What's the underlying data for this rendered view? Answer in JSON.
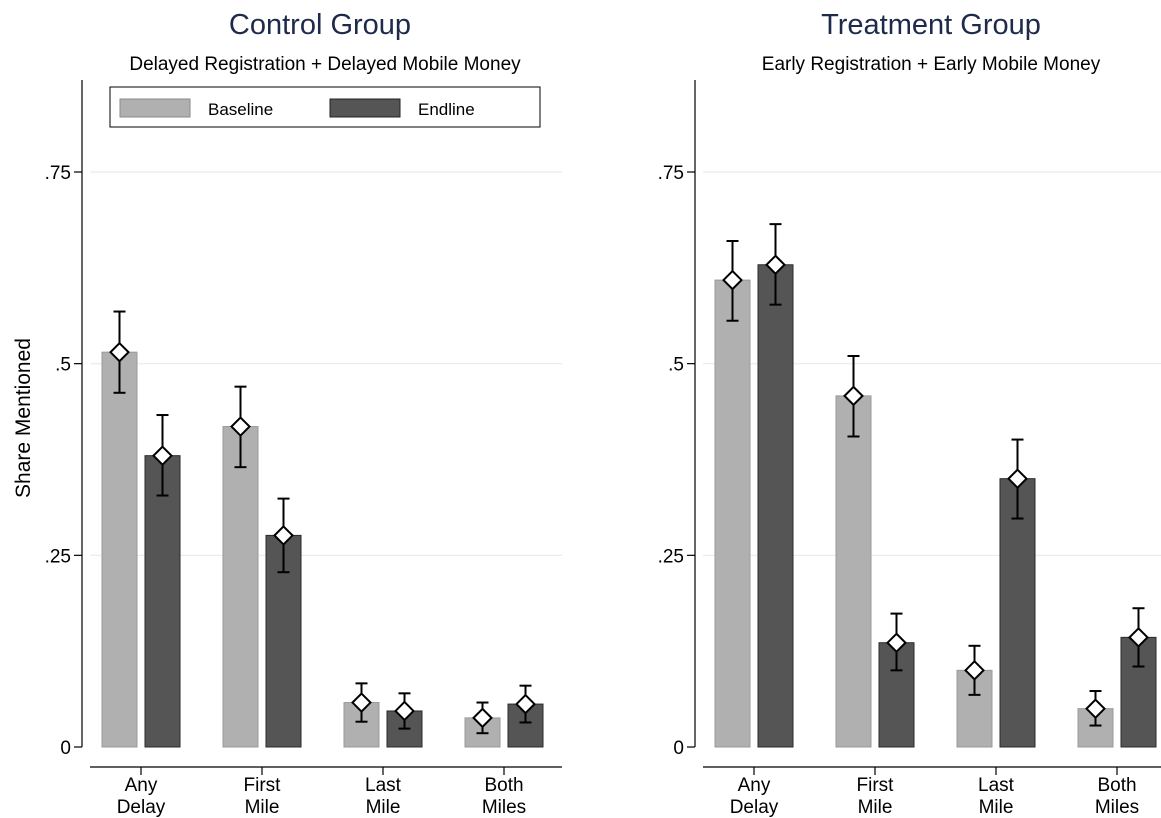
{
  "colors": {
    "baseline": "#b0b0b0",
    "endline": "#555555",
    "grid": "#eaeaea",
    "title": "#1e2a4a"
  },
  "ylabel": "Share Mentioned",
  "legend": {
    "baseline": "Baseline",
    "endline": "Endline"
  },
  "chart_data": [
    {
      "type": "bar",
      "title": "Control Group",
      "subtitle": "Delayed Registration + Delayed Mobile Money",
      "categories": [
        [
          "Any",
          "Delay"
        ],
        [
          "First",
          "Mile"
        ],
        [
          "Last",
          "Mile"
        ],
        [
          "Both",
          "Miles"
        ]
      ],
      "ylabel": "Share Mentioned",
      "ylim": [
        0,
        0.87
      ],
      "yticks": [
        0,
        0.25,
        0.5,
        0.75
      ],
      "ytick_labels": [
        "0",
        ".25",
        ".5",
        ".75"
      ],
      "grid": true,
      "legend_position": "top",
      "series": [
        {
          "name": "Baseline",
          "values": [
            0.515,
            0.418,
            0.058,
            0.038
          ],
          "ci": [
            [
              0.462,
              0.568
            ],
            [
              0.365,
              0.47
            ],
            [
              0.033,
              0.083
            ],
            [
              0.018,
              0.058
            ]
          ]
        },
        {
          "name": "Endline",
          "values": [
            0.38,
            0.276,
            0.047,
            0.056
          ],
          "ci": [
            [
              0.328,
              0.433
            ],
            [
              0.228,
              0.324
            ],
            [
              0.024,
              0.07
            ],
            [
              0.032,
              0.08
            ]
          ]
        }
      ]
    },
    {
      "type": "bar",
      "title": "Treatment Group",
      "subtitle": "Early Registration + Early Mobile Money",
      "categories": [
        [
          "Any",
          "Delay"
        ],
        [
          "First",
          "Mile"
        ],
        [
          "Last",
          "Mile"
        ],
        [
          "Both",
          "Miles"
        ]
      ],
      "ylim": [
        0,
        0.87
      ],
      "yticks": [
        0,
        0.25,
        0.5,
        0.75
      ],
      "ytick_labels": [
        "0",
        ".25",
        ".5",
        ".75"
      ],
      "grid": true,
      "series": [
        {
          "name": "Baseline",
          "values": [
            0.609,
            0.458,
            0.1,
            0.05
          ],
          "ci": [
            [
              0.556,
              0.66
            ],
            [
              0.405,
              0.51
            ],
            [
              0.068,
              0.132
            ],
            [
              0.028,
              0.073
            ]
          ]
        },
        {
          "name": "Endline",
          "values": [
            0.629,
            0.136,
            0.35,
            0.143
          ],
          "ci": [
            [
              0.577,
              0.682
            ],
            [
              0.1,
              0.174
            ],
            [
              0.298,
              0.401
            ],
            [
              0.105,
              0.181
            ]
          ]
        }
      ]
    }
  ]
}
